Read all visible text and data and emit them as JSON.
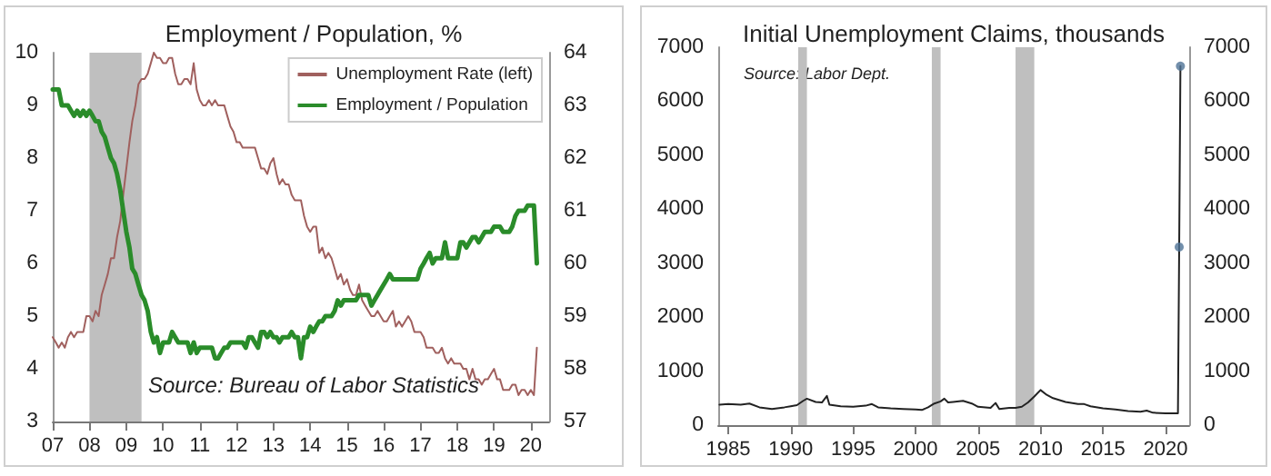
{
  "chart_data": [
    {
      "type": "line",
      "title": "Employment / Population, %",
      "annotations": [
        "Source: Bureau of Labor Statistics"
      ],
      "legend": "top right",
      "grid": false,
      "x": [
        "2007-01",
        "2007-02",
        "2007-03",
        "2007-04",
        "2007-05",
        "2007-06",
        "2007-07",
        "2007-08",
        "2007-09",
        "2007-10",
        "2007-11",
        "2007-12",
        "2008-01",
        "2008-02",
        "2008-03",
        "2008-04",
        "2008-05",
        "2008-06",
        "2008-07",
        "2008-08",
        "2008-09",
        "2008-10",
        "2008-11",
        "2008-12",
        "2009-01",
        "2009-02",
        "2009-03",
        "2009-04",
        "2009-05",
        "2009-06",
        "2009-07",
        "2009-08",
        "2009-09",
        "2009-10",
        "2009-11",
        "2009-12",
        "2010-01",
        "2010-02",
        "2010-03",
        "2010-04",
        "2010-05",
        "2010-06",
        "2010-07",
        "2010-08",
        "2010-09",
        "2010-10",
        "2010-11",
        "2010-12",
        "2011-01",
        "2011-02",
        "2011-03",
        "2011-04",
        "2011-05",
        "2011-06",
        "2011-07",
        "2011-08",
        "2011-09",
        "2011-10",
        "2011-11",
        "2011-12",
        "2012-01",
        "2012-02",
        "2012-03",
        "2012-04",
        "2012-05",
        "2012-06",
        "2012-07",
        "2012-08",
        "2012-09",
        "2012-10",
        "2012-11",
        "2012-12",
        "2013-01",
        "2013-02",
        "2013-03",
        "2013-04",
        "2013-05",
        "2013-06",
        "2013-07",
        "2013-08",
        "2013-09",
        "2013-10",
        "2013-11",
        "2013-12",
        "2014-01",
        "2014-02",
        "2014-03",
        "2014-04",
        "2014-05",
        "2014-06",
        "2014-07",
        "2014-08",
        "2014-09",
        "2014-10",
        "2014-11",
        "2014-12",
        "2015-01",
        "2015-02",
        "2015-03",
        "2015-04",
        "2015-05",
        "2015-06",
        "2015-07",
        "2015-08",
        "2015-09",
        "2015-10",
        "2015-11",
        "2015-12",
        "2016-01",
        "2016-02",
        "2016-03",
        "2016-04",
        "2016-05",
        "2016-06",
        "2016-07",
        "2016-08",
        "2016-09",
        "2016-10",
        "2016-11",
        "2016-12",
        "2017-01",
        "2017-02",
        "2017-03",
        "2017-04",
        "2017-05",
        "2017-06",
        "2017-07",
        "2017-08",
        "2017-09",
        "2017-10",
        "2017-11",
        "2017-12",
        "2018-01",
        "2018-02",
        "2018-03",
        "2018-04",
        "2018-05",
        "2018-06",
        "2018-07",
        "2018-08",
        "2018-09",
        "2018-10",
        "2018-11",
        "2018-12",
        "2019-01",
        "2019-02",
        "2019-03",
        "2019-04",
        "2019-05",
        "2019-06",
        "2019-07",
        "2019-08",
        "2019-09",
        "2019-10",
        "2019-11",
        "2019-12",
        "2020-01",
        "2020-02",
        "2020-03"
      ],
      "xlim": [
        "2007-01",
        "2020-07"
      ],
      "xticks": [
        {
          "value": "2007-01",
          "label": "07"
        },
        {
          "value": "2008-01",
          "label": "08"
        },
        {
          "value": "2009-01",
          "label": "09"
        },
        {
          "value": "2010-01",
          "label": "10"
        },
        {
          "value": "2011-01",
          "label": "11"
        },
        {
          "value": "2012-01",
          "label": "12"
        },
        {
          "value": "2013-01",
          "label": "13"
        },
        {
          "value": "2014-01",
          "label": "14"
        },
        {
          "value": "2015-01",
          "label": "15"
        },
        {
          "value": "2016-01",
          "label": "16"
        },
        {
          "value": "2017-01",
          "label": "17"
        },
        {
          "value": "2018-01",
          "label": "18"
        },
        {
          "value": "2019-01",
          "label": "19"
        },
        {
          "value": "2020-01",
          "label": "20"
        }
      ],
      "ylim": [
        3,
        10
      ],
      "yticks": [
        3,
        4,
        5,
        6,
        7,
        8,
        9,
        10
      ],
      "y2lim": [
        57,
        64
      ],
      "y2ticks": [
        57,
        58,
        59,
        60,
        61,
        62,
        63,
        64
      ],
      "bands": [
        {
          "axis": "x",
          "from": "2008-01",
          "to": "2009-06",
          "color": "#bfbfbf"
        }
      ],
      "series": [
        {
          "name": "Unemployment Rate (left)",
          "color": "#a0605e",
          "values": [
            4.6,
            4.5,
            4.4,
            4.5,
            4.4,
            4.6,
            4.7,
            4.6,
            4.7,
            4.7,
            4.7,
            5.0,
            5.0,
            4.9,
            5.1,
            5.0,
            5.4,
            5.6,
            5.8,
            6.1,
            6.1,
            6.5,
            6.8,
            7.3,
            7.8,
            8.3,
            8.7,
            9.0,
            9.4,
            9.5,
            9.5,
            9.6,
            9.8,
            10.0,
            9.9,
            9.9,
            9.8,
            9.8,
            9.9,
            9.9,
            9.6,
            9.4,
            9.4,
            9.5,
            9.5,
            9.4,
            9.8,
            9.3,
            9.1,
            9.0,
            9.0,
            9.1,
            9.0,
            9.1,
            9.0,
            9.0,
            9.0,
            8.8,
            8.6,
            8.5,
            8.3,
            8.3,
            8.2,
            8.2,
            8.2,
            8.2,
            8.2,
            8.0,
            7.8,
            7.8,
            7.7,
            7.9,
            8.0,
            7.7,
            7.5,
            7.6,
            7.5,
            7.5,
            7.3,
            7.2,
            7.2,
            7.2,
            6.9,
            6.7,
            6.6,
            6.7,
            6.7,
            6.2,
            6.3,
            6.1,
            6.2,
            6.1,
            5.9,
            5.7,
            5.8,
            5.6,
            5.7,
            5.5,
            5.4,
            5.4,
            5.6,
            5.3,
            5.2,
            5.1,
            5.0,
            5.0,
            5.1,
            5.0,
            4.9,
            4.9,
            5.0,
            5.1,
            4.8,
            4.9,
            4.8,
            4.9,
            5.0,
            4.9,
            4.7,
            4.7,
            4.7,
            4.6,
            4.4,
            4.4,
            4.4,
            4.3,
            4.3,
            4.4,
            4.2,
            4.1,
            4.2,
            4.1,
            4.1,
            4.1,
            4.0,
            4.0,
            3.8,
            4.0,
            3.8,
            3.8,
            3.7,
            3.8,
            3.8,
            3.9,
            4.0,
            3.8,
            3.8,
            3.6,
            3.6,
            3.6,
            3.7,
            3.7,
            3.5,
            3.6,
            3.6,
            3.5,
            3.6,
            3.5,
            4.4
          ]
        },
        {
          "name": "Employment / Population",
          "color": "#2a8c2a",
          "axis": "y2",
          "values": [
            63.3,
            63.3,
            63.3,
            63.0,
            63.0,
            63.0,
            62.9,
            62.8,
            62.9,
            62.8,
            62.9,
            62.8,
            62.9,
            62.8,
            62.7,
            62.7,
            62.5,
            62.4,
            62.2,
            62.0,
            61.9,
            61.7,
            61.4,
            61.0,
            60.6,
            60.3,
            59.9,
            59.8,
            59.6,
            59.4,
            59.3,
            59.1,
            58.7,
            58.5,
            58.6,
            58.3,
            58.5,
            58.5,
            58.5,
            58.7,
            58.6,
            58.5,
            58.5,
            58.5,
            58.5,
            58.3,
            58.5,
            58.3,
            58.4,
            58.4,
            58.4,
            58.4,
            58.4,
            58.2,
            58.2,
            58.3,
            58.4,
            58.4,
            58.5,
            58.5,
            58.5,
            58.5,
            58.5,
            58.4,
            58.6,
            58.6,
            58.5,
            58.4,
            58.7,
            58.7,
            58.6,
            58.7,
            58.6,
            58.6,
            58.5,
            58.6,
            58.6,
            58.6,
            58.7,
            58.6,
            58.6,
            58.2,
            58.6,
            58.6,
            58.8,
            58.7,
            58.8,
            58.9,
            58.9,
            59.0,
            59.0,
            59.0,
            59.1,
            59.3,
            59.2,
            59.3,
            59.3,
            59.3,
            59.3,
            59.3,
            59.4,
            59.4,
            59.4,
            59.4,
            59.2,
            59.3,
            59.4,
            59.5,
            59.6,
            59.7,
            59.8,
            59.7,
            59.7,
            59.7,
            59.7,
            59.7,
            59.7,
            59.7,
            59.7,
            59.7,
            59.9,
            60.0,
            60.1,
            60.2,
            60.0,
            60.1,
            60.1,
            60.1,
            60.4,
            60.1,
            60.1,
            60.1,
            60.1,
            60.4,
            60.4,
            60.3,
            60.4,
            60.5,
            60.5,
            60.4,
            60.5,
            60.6,
            60.6,
            60.6,
            60.7,
            60.7,
            60.7,
            60.6,
            60.6,
            60.6,
            60.7,
            60.9,
            61.0,
            61.0,
            61.0,
            61.1,
            61.1,
            61.1,
            60.0
          ]
        }
      ]
    },
    {
      "type": "line",
      "title": "Initial Unemployment Claims, thousands",
      "annotations": [
        "Source: Labor Dept."
      ],
      "grid": false,
      "xlim": [
        1984.2,
        2021.9
      ],
      "xticks": [
        1985,
        1990,
        1995,
        2000,
        2005,
        2010,
        2015,
        2020
      ],
      "ylim": [
        0,
        7000
      ],
      "yticks": [
        0,
        1000,
        2000,
        3000,
        4000,
        5000,
        6000,
        7000
      ],
      "y2lim": [
        0,
        7000
      ],
      "y2ticks": [
        0,
        1000,
        2000,
        3000,
        4000,
        5000,
        6000,
        7000
      ],
      "bands": [
        {
          "axis": "x",
          "from": 1990.6,
          "to": 1991.3,
          "color": "#bfbfbf"
        },
        {
          "axis": "x",
          "from": 2001.3,
          "to": 2002.0,
          "color": "#bfbfbf"
        },
        {
          "axis": "x",
          "from": 2008.0,
          "to": 2009.5,
          "color": "#bfbfbf"
        }
      ],
      "series": [
        {
          "color": "#222222",
          "x": [
            1984.3,
            1985,
            1986,
            1986.7,
            1987.5,
            1988.5,
            1989.5,
            1990,
            1990.5,
            1991,
            1991.3,
            1992,
            1992.5,
            1992.9,
            1993.1,
            1994,
            1995,
            1996,
            1996.5,
            1997,
            1998,
            1999,
            2000,
            2000.5,
            2001,
            2001.5,
            2002,
            2002.3,
            2002.6,
            2003,
            2003.8,
            2004.5,
            2005,
            2006,
            2006.4,
            2006.7,
            2007.5,
            2008,
            2008.5,
            2009,
            2009.5,
            2010,
            2010.5,
            2011,
            2012,
            2013,
            2013.5,
            2014,
            2015,
            2016,
            2017,
            2018,
            2018.5,
            2019,
            2020,
            2021,
            2021.1,
            2021.2
          ],
          "values": [
            380,
            390,
            380,
            400,
            330,
            300,
            330,
            350,
            370,
            450,
            490,
            430,
            420,
            540,
            380,
            350,
            340,
            360,
            390,
            330,
            310,
            300,
            290,
            280,
            330,
            400,
            440,
            490,
            420,
            430,
            450,
            400,
            340,
            320,
            410,
            300,
            320,
            320,
            340,
            420,
            530,
            650,
            560,
            500,
            430,
            390,
            390,
            350,
            310,
            290,
            260,
            250,
            270,
            230,
            220,
            220,
            3300,
            6650
          ]
        },
        {
          "type": "scatter",
          "marker": "circle",
          "color": "#4f7396",
          "x": [
            2021.1,
            2021.2
          ],
          "values": [
            3300,
            6650
          ]
        }
      ]
    }
  ]
}
